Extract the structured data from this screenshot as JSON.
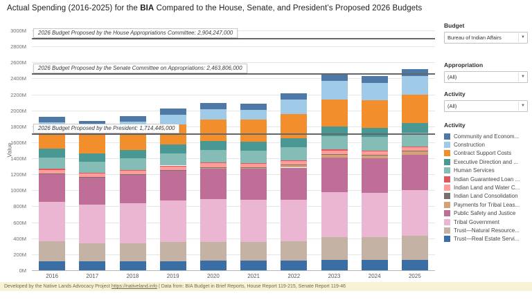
{
  "title": {
    "prefix": "Actual Spending (2016-2025) for the ",
    "bold": "BIA",
    "suffix": " Compared to the House, Senate, and President’s Proposed 2026 Budgets"
  },
  "sidebar": {
    "budget_label": "Budget",
    "budget_value": "Bureau of Indian Affairs",
    "appropriation_label": "Appropriation",
    "appropriation_value": "(All)",
    "activity_label": "Activity",
    "activity_value": "(All)",
    "legend_title": "Activity",
    "dropdown_caret": "▼"
  },
  "footer": {
    "text_before_link": "Developed by the Native Lands Advocacy Project ",
    "link": "https://nativeland.info",
    "text_after_link": " | Data from: BIA Budget in Brief Reports, House Report 119-215, Senate Report 119-46"
  },
  "chart_data": {
    "type": "bar",
    "stacked": true,
    "stack_order": "reverse-of-series-list-from-bottom",
    "title": "Actual Spending (2016-2025) for the BIA Compared to the House, Senate, and President’s Proposed 2026 Budgets",
    "xlabel": "",
    "ylabel": "Value",
    "ylim": [
      0,
      3000
    ],
    "ytick_step": 200,
    "ytick_suffix": "M",
    "grid": true,
    "legend_position": "right",
    "units": "millions of dollars (estimated from pixel heights)",
    "categories": [
      "2016",
      "2017",
      "2018",
      "2019",
      "2020",
      "2021",
      "2022",
      "2023",
      "2024",
      "2025"
    ],
    "series": [
      {
        "name": "Community and Econom...",
        "color": "#4e79a7",
        "values": [
          70,
          65,
          70,
          75,
          75,
          72,
          78,
          85,
          85,
          88
        ]
      },
      {
        "name": "Construction",
        "color": "#a0cbe8",
        "values": [
          110,
          105,
          115,
          120,
          130,
          125,
          180,
          230,
          215,
          230
        ]
      },
      {
        "name": "Contract Support Costs",
        "color": "#f28e2b",
        "values": [
          215,
          230,
          240,
          255,
          270,
          275,
          300,
          340,
          345,
          355
        ]
      },
      {
        "name": "Executive Direction and ...",
        "color": "#499894",
        "values": [
          110,
          105,
          105,
          110,
          112,
          112,
          115,
          120,
          120,
          122
        ]
      },
      {
        "name": "Human Services",
        "color": "#86bcb6",
        "values": [
          145,
          140,
          145,
          150,
          155,
          155,
          160,
          165,
          165,
          168
        ]
      },
      {
        "name": "Indian Guaranteed Loan ...",
        "color": "#e15759",
        "values": [
          15,
          12,
          12,
          12,
          12,
          12,
          12,
          12,
          12,
          12
        ]
      },
      {
        "name": "Indian Land and Water C...",
        "color": "#ff9d9a",
        "values": [
          45,
          40,
          40,
          45,
          45,
          42,
          45,
          48,
          45,
          45
        ]
      },
      {
        "name": "Indian Land Consolidation",
        "color": "#79706e",
        "values": [
          8,
          8,
          8,
          8,
          8,
          8,
          8,
          8,
          8,
          8
        ]
      },
      {
        "name": "Payments for Tribal Leas...",
        "color": "#d5a277",
        "values": [
          0,
          0,
          0,
          0,
          5,
          8,
          28,
          35,
          38,
          42
        ]
      },
      {
        "name": "Public Safety and Justice",
        "color": "#bf6e97",
        "values": [
          345,
          340,
          355,
          370,
          385,
          385,
          400,
          430,
          430,
          445
        ]
      },
      {
        "name": "Tribal Government",
        "color": "#eab6d2",
        "values": [
          495,
          480,
          500,
          520,
          535,
          530,
          520,
          560,
          555,
          565
        ]
      },
      {
        "name": "Trust—Natural Resource...",
        "color": "#c4b2a4",
        "values": [
          245,
          230,
          230,
          240,
          240,
          238,
          245,
          290,
          285,
          305
        ]
      },
      {
        "name": "Trust—Real Estate Servi...",
        "color": "#3a6ea5",
        "values": [
          115,
          110,
          110,
          115,
          118,
          118,
          119,
          127,
          127,
          130
        ]
      }
    ],
    "totals": [
      1918,
      1865,
      1930,
      2020,
      2090,
      2080,
      2210,
      2450,
      2430,
      2515
    ],
    "reference_lines": [
      {
        "label": "2026 Budget Proposed by the House Appropriations Committee: 2,904,247,000",
        "value": 2904.247
      },
      {
        "label": "2026 Budget Proposed by the Senate Committee on Appropriations: 2,463,806,000",
        "value": 2463.806
      },
      {
        "label": "2026 Budget Proposed by the President: 1,714,445,000",
        "value": 1714.445
      }
    ]
  }
}
